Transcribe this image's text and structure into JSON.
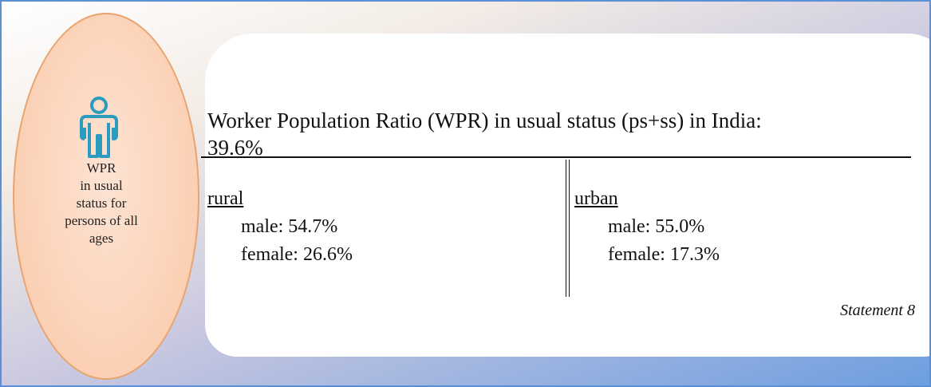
{
  "left_panel": {
    "label_lines": [
      "WPR",
      "in usual",
      "status for",
      "persons of all",
      "ages"
    ]
  },
  "card": {
    "title_lines": [
      "Worker Population Ratio (WPR) in usual status (ps+ss) in India:",
      "39.6%"
    ],
    "columns": [
      {
        "heading": "rural",
        "items": [
          "male: 54.7%",
          "female: 26.6%"
        ]
      },
      {
        "heading": "urban",
        "items": [
          "male: 55.0%",
          "female: 17.3%"
        ]
      }
    ],
    "footnote": "Statement 8"
  }
}
